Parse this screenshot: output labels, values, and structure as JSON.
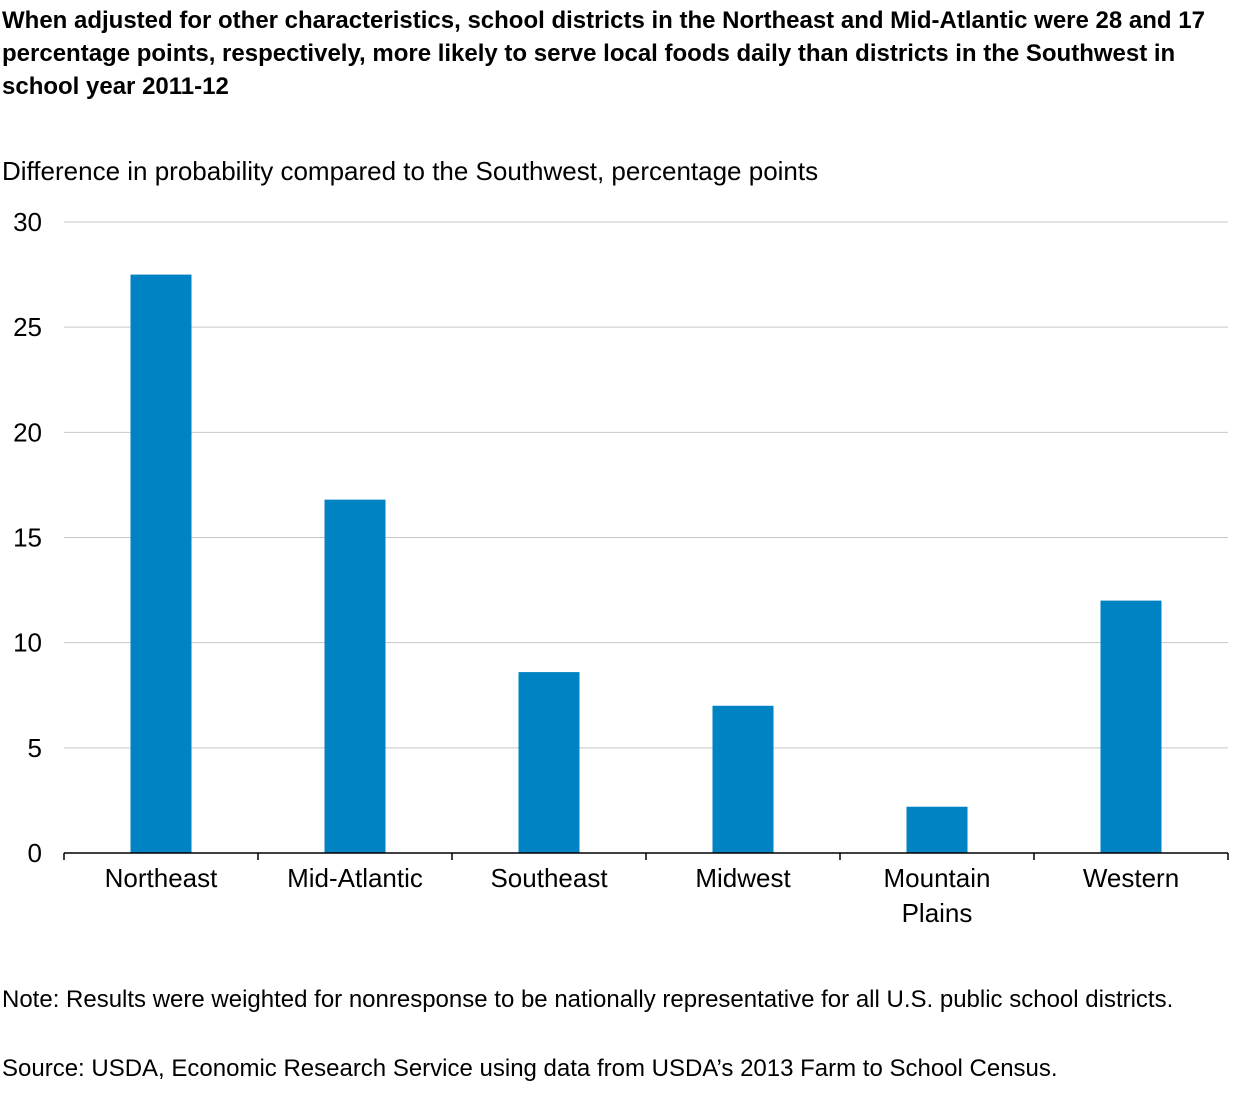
{
  "chart_data": {
    "type": "bar",
    "title": "When adjusted for other characteristics, school districts in the Northeast and Mid-Atlantic were 28 and 17 percentage points, respectively, more likely to serve local foods daily than districts in the Southwest in school year 2011-12",
    "ylabel": "Difference in probability compared to the Southwest, percentage points",
    "xlabel": "",
    "categories": [
      "Northeast",
      "Mid-Atlantic",
      "Southeast",
      "Midwest",
      "Mountain Plains",
      "Western"
    ],
    "category_lines": [
      [
        "Northeast"
      ],
      [
        "Mid-Atlantic"
      ],
      [
        "Southeast"
      ],
      [
        "Midwest"
      ],
      [
        "Mountain",
        "Plains"
      ],
      [
        "Western"
      ]
    ],
    "values": [
      27.5,
      16.8,
      8.6,
      7.0,
      2.2,
      12.0
    ],
    "ylim": [
      0,
      30
    ],
    "yticks": [
      "0",
      "5",
      "10",
      "15",
      "20",
      "25",
      "30"
    ],
    "grid": true,
    "bar_color": "#0083c2",
    "grid_color": "#c8c8c8",
    "axis_color": "#000000"
  },
  "footer": {
    "note": "Note: Results were weighted for nonresponse to be nationally representative for all U.S. public school districts.",
    "source": "Source: USDA, Economic Research Service using data from USDA’s 2013 Farm to School Census."
  }
}
